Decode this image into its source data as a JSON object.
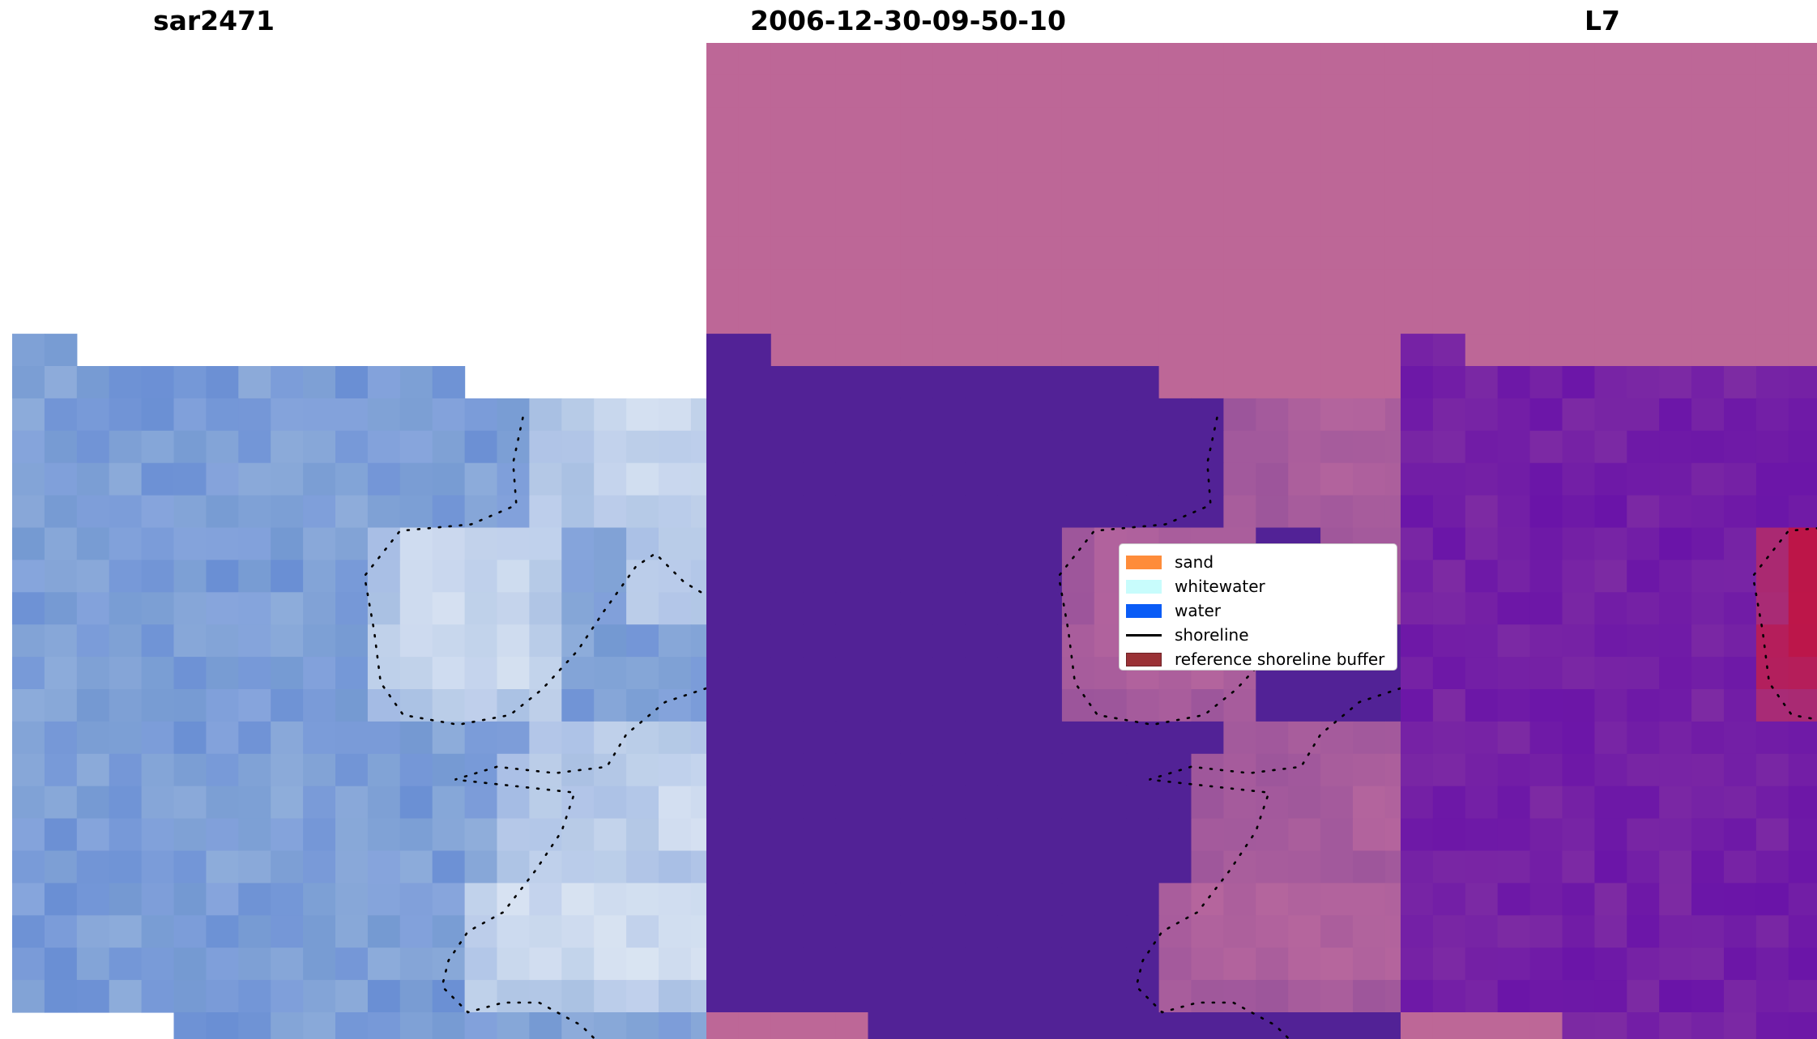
{
  "panels": [
    {
      "id": "rgb",
      "title": "sar2471"
    },
    {
      "id": "classified",
      "title": "2006-12-30-09-50-10"
    },
    {
      "id": "index",
      "title": "L7"
    }
  ],
  "legend": {
    "items": [
      {
        "label": "sand",
        "kind": "patch",
        "color": "#fe8c3a"
      },
      {
        "label": "whitewater",
        "kind": "patch",
        "color": "#c8fcfc"
      },
      {
        "label": "water",
        "kind": "patch",
        "color": "#0a5cf6"
      },
      {
        "label": "shoreline",
        "kind": "line",
        "color": "#000000"
      },
      {
        "label": "reference shoreline buffer",
        "kind": "patch",
        "color": "#9a3236"
      }
    ]
  },
  "colors": {
    "nodata": "#bd6797",
    "classified_water": "#522296",
    "rgb_base": "#6f93d6",
    "rgb_bright": "#dfe8f4",
    "index_low": "#6a14a8",
    "index_high": "#c2103d"
  },
  "icons": [
    "dotted-shoreline"
  ]
}
